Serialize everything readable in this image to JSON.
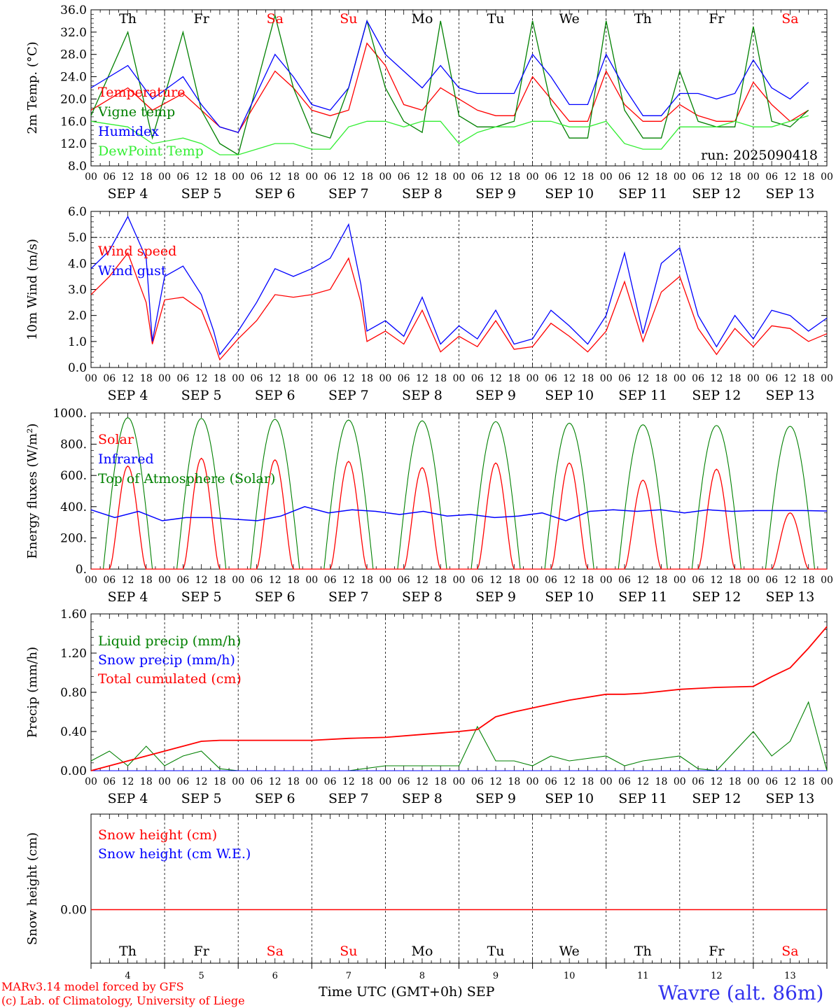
{
  "footer": {
    "model_line1": "MARv3.14 model forced by GFS",
    "model_line2": "(c) Lab. of Climatology, University of Liege",
    "xlabel": "Time UTC (GMT+0h)",
    "month": "SEP",
    "station": "Wavre (alt. 86m)",
    "run": "run: 2025090418"
  },
  "colors": {
    "red": "#ff0000",
    "green": "#008000",
    "blue": "#0000ff",
    "lightgreen": "#33ee33"
  },
  "days": [
    {
      "date": "4",
      "dow": "Th",
      "weekend": false
    },
    {
      "date": "5",
      "dow": "Fr",
      "weekend": false
    },
    {
      "date": "6",
      "dow": "Sa",
      "weekend": true
    },
    {
      "date": "7",
      "dow": "Su",
      "weekend": true
    },
    {
      "date": "8",
      "dow": "Mo",
      "weekend": false
    },
    {
      "date": "9",
      "dow": "Tu",
      "weekend": false
    },
    {
      "date": "10",
      "dow": "We",
      "weekend": false
    },
    {
      "date": "11",
      "dow": "Th",
      "weekend": false
    },
    {
      "date": "12",
      "dow": "Fr",
      "weekend": false
    },
    {
      "date": "13",
      "dow": "Sa",
      "weekend": true
    }
  ],
  "hour_ticks": [
    "00",
    "06",
    "12",
    "18"
  ],
  "chart_data": [
    {
      "type": "line",
      "ylabel": "2m Temp. (°C)",
      "ylim": [
        8,
        36
      ],
      "yticks": [
        "8.0",
        "12.0",
        "16.0",
        "20.0",
        "24.0",
        "28.0",
        "32.0",
        "36.0"
      ],
      "x_hours": [
        0,
        12,
        20,
        30,
        36,
        42,
        48,
        60,
        66,
        72,
        78,
        84,
        90,
        96,
        102,
        108,
        114,
        120,
        126,
        132,
        138,
        144,
        150,
        156,
        162,
        168,
        174,
        180,
        186,
        192,
        198,
        204,
        210,
        216,
        222,
        228,
        234
      ],
      "series": [
        {
          "name": "Temperature",
          "color": "red",
          "values": [
            18,
            22,
            18,
            21,
            18,
            15,
            14,
            25,
            22,
            18,
            17,
            18,
            30,
            26,
            19,
            18,
            22,
            20,
            18,
            17,
            17,
            24,
            20,
            16,
            16,
            25,
            19,
            16,
            16,
            19,
            17,
            16,
            16,
            23,
            19,
            16,
            18
          ]
        },
        {
          "name": "Vigne temp",
          "color": "green",
          "values": [
            17,
            32,
            13,
            32,
            18,
            12,
            10,
            35,
            22,
            14,
            13,
            22,
            34,
            22,
            16,
            14,
            34,
            17,
            15,
            15,
            16,
            34,
            19,
            13,
            13,
            34,
            18,
            13,
            13,
            25,
            16,
            15,
            15,
            33,
            16,
            15,
            18
          ]
        },
        {
          "name": "Humidex",
          "color": "blue",
          "values": [
            22,
            26,
            20,
            24,
            19,
            15,
            14,
            28,
            24,
            19,
            18,
            22,
            34,
            28,
            25,
            22,
            26,
            22,
            21,
            21,
            21,
            28,
            24,
            19,
            19,
            28,
            22,
            17,
            17,
            21,
            21,
            20,
            21,
            27,
            22,
            20,
            23
          ]
        },
        {
          "name": "DewPoint Temp",
          "color": "lightgreen",
          "values": [
            16,
            15,
            12,
            13,
            12,
            10,
            10,
            12,
            12,
            11,
            11,
            15,
            16,
            16,
            15,
            16,
            16,
            12,
            14,
            15,
            15,
            16,
            16,
            15,
            15,
            16,
            12,
            11,
            11,
            15,
            15,
            15,
            16,
            15,
            15,
            16,
            17
          ]
        }
      ]
    },
    {
      "type": "line",
      "ylabel": "10m Wind (m/s)",
      "ylim": [
        0,
        6
      ],
      "yticks": [
        "0.0",
        "1.0",
        "2.0",
        "3.0",
        "4.0",
        "5.0",
        "6.0"
      ],
      "ref_line": 5,
      "x_hours": [
        0,
        6,
        12,
        18,
        20,
        24,
        30,
        36,
        40,
        42,
        48,
        54,
        60,
        66,
        72,
        78,
        84,
        88,
        90,
        96,
        102,
        108,
        114,
        120,
        126,
        132,
        138,
        144,
        150,
        156,
        162,
        168,
        174,
        180,
        186,
        192,
        198,
        204,
        210,
        216,
        222,
        228,
        234,
        240
      ],
      "series": [
        {
          "name": "Wind speed",
          "color": "red",
          "values": [
            2.8,
            3.5,
            4.4,
            2.5,
            0.9,
            2.6,
            2.7,
            2.2,
            1.0,
            0.3,
            1.1,
            1.8,
            2.8,
            2.7,
            2.8,
            3.0,
            4.2,
            2.5,
            1.0,
            1.4,
            0.9,
            2.2,
            0.6,
            1.2,
            0.8,
            1.8,
            0.7,
            0.8,
            1.7,
            1.2,
            0.6,
            1.4,
            3.3,
            1.0,
            2.9,
            3.5,
            1.5,
            0.5,
            1.5,
            0.8,
            1.6,
            1.5,
            1.0,
            1.3
          ]
        },
        {
          "name": "Wind gust",
          "color": "blue",
          "values": [
            3.8,
            4.5,
            5.8,
            4.2,
            1.0,
            3.5,
            3.9,
            2.8,
            1.4,
            0.5,
            1.4,
            2.5,
            3.8,
            3.5,
            3.8,
            4.2,
            5.5,
            3.2,
            1.4,
            1.8,
            1.2,
            2.7,
            0.9,
            1.6,
            1.1,
            2.2,
            0.9,
            1.1,
            2.2,
            1.6,
            0.9,
            2.0,
            4.4,
            1.3,
            4.0,
            4.6,
            2.0,
            0.8,
            2.0,
            1.1,
            2.2,
            2.0,
            1.4,
            1.9
          ]
        }
      ]
    },
    {
      "type": "line",
      "ylabel": "Energy fluxes (W/m²)",
      "ylim": [
        0,
        1000
      ],
      "yticks": [
        "0.",
        "200.",
        "400.",
        "600.",
        "800.",
        "1000."
      ],
      "solar_peaks": [
        660,
        710,
        700,
        690,
        650,
        680,
        680,
        570,
        640,
        360
      ],
      "toa_peaks": [
        970,
        965,
        960,
        955,
        950,
        945,
        935,
        925,
        920,
        915
      ],
      "infrared_values": [
        380,
        330,
        370,
        310,
        330,
        330,
        320,
        310,
        340,
        400,
        360,
        380,
        370,
        350,
        370,
        340,
        350,
        330,
        340,
        360,
        310,
        370,
        380,
        370,
        380,
        360,
        380,
        370,
        375,
        375,
        375,
        372
      ],
      "series": [
        {
          "name": "Solar",
          "color": "red"
        },
        {
          "name": "Infrared",
          "color": "blue"
        },
        {
          "name": "Top of Atmosphere (Solar)",
          "color": "green"
        }
      ]
    },
    {
      "type": "line",
      "ylabel": "Precip (mm/h)",
      "ylim": [
        0,
        1.6
      ],
      "yticks": [
        "0.00",
        "0.40",
        "0.80",
        "1.20",
        "1.60"
      ],
      "x_hours": [
        0,
        6,
        12,
        18,
        24,
        30,
        36,
        42,
        48,
        60,
        72,
        84,
        96,
        108,
        120,
        126,
        132,
        138,
        144,
        150,
        156,
        168,
        174,
        180,
        192,
        198,
        204,
        216,
        222,
        228,
        234,
        240
      ],
      "series": [
        {
          "name": "Liquid precip (mm/h)",
          "color": "green",
          "values": [
            0.1,
            0.2,
            0.05,
            0.25,
            0.05,
            0.15,
            0.2,
            0.02,
            0,
            0,
            0,
            0,
            0.05,
            0.05,
            0.05,
            0.45,
            0.1,
            0.1,
            0.05,
            0.15,
            0.1,
            0.15,
            0.05,
            0.1,
            0.15,
            0.02,
            0,
            0.4,
            0.15,
            0.3,
            0.7,
            0
          ]
        },
        {
          "name": "Snow precip (mm/h)",
          "color": "blue",
          "values": [
            0,
            0,
            0,
            0,
            0,
            0,
            0,
            0,
            0,
            0,
            0,
            0,
            0,
            0,
            0,
            0,
            0,
            0,
            0,
            0,
            0,
            0,
            0,
            0,
            0,
            0,
            0,
            0,
            0,
            0,
            0,
            0
          ]
        },
        {
          "name": "Total cumulated (cm)",
          "color": "red",
          "values": [
            0,
            0.05,
            0.1,
            0.15,
            0.2,
            0.25,
            0.3,
            0.31,
            0.31,
            0.31,
            0.31,
            0.33,
            0.34,
            0.37,
            0.4,
            0.42,
            0.55,
            0.6,
            0.64,
            0.68,
            0.72,
            0.78,
            0.78,
            0.79,
            0.83,
            0.84,
            0.85,
            0.86,
            0.96,
            1.05,
            1.25,
            1.47
          ]
        }
      ]
    },
    {
      "type": "line",
      "ylabel": "Snow height (cm)",
      "yticks": [
        "0.00"
      ],
      "series": [
        {
          "name": "Snow height (cm)",
          "color": "red",
          "values": [
            0,
            0
          ]
        },
        {
          "name": "Snow height (cm W.E.)",
          "color": "blue",
          "values": [
            0,
            0
          ]
        }
      ]
    }
  ]
}
